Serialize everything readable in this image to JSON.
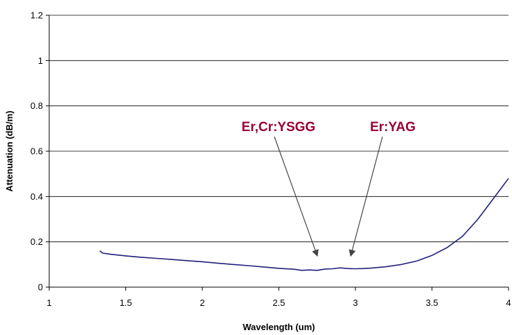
{
  "chart_data": {
    "type": "line",
    "xlabel": "Wavelength (um)",
    "ylabel": "Attenuation (dB/m)",
    "xlim": [
      1,
      4
    ],
    "ylim": [
      0,
      1.2
    ],
    "x_ticks": [
      "1",
      "1.5",
      "2",
      "2.5",
      "3",
      "3.5",
      "4"
    ],
    "y_ticks": [
      "0",
      "0.2",
      "0.4",
      "0.6",
      "0.8",
      "1",
      "1.2"
    ],
    "grid": "horizontal",
    "legend": "none",
    "line_color": "#1f1f7a",
    "series": [
      {
        "x": [
          1.33,
          1.35,
          1.4,
          1.5,
          1.6,
          1.7,
          1.8,
          1.9,
          2.0,
          2.1,
          2.2,
          2.3,
          2.4,
          2.5,
          2.6,
          2.65,
          2.7,
          2.75,
          2.8,
          2.85,
          2.9,
          2.95,
          3.0,
          3.05,
          3.1,
          3.2,
          3.3,
          3.4,
          3.5,
          3.6,
          3.7,
          3.8,
          3.9,
          4.0
        ],
        "y": [
          0.16,
          0.15,
          0.145,
          0.138,
          0.132,
          0.127,
          0.122,
          0.117,
          0.112,
          0.106,
          0.1,
          0.095,
          0.089,
          0.083,
          0.079,
          0.074,
          0.076,
          0.074,
          0.08,
          0.081,
          0.085,
          0.082,
          0.081,
          0.082,
          0.084,
          0.09,
          0.1,
          0.115,
          0.14,
          0.175,
          0.225,
          0.3,
          0.39,
          0.48
        ]
      }
    ],
    "annotations": [
      {
        "text": "Er,Cr:YSGG",
        "color": "#990033",
        "arrow_to": [
          2.75,
          0.14
        ]
      },
      {
        "text": "Er:YAG",
        "color": "#990033",
        "arrow_to": [
          2.97,
          0.14
        ]
      }
    ]
  }
}
